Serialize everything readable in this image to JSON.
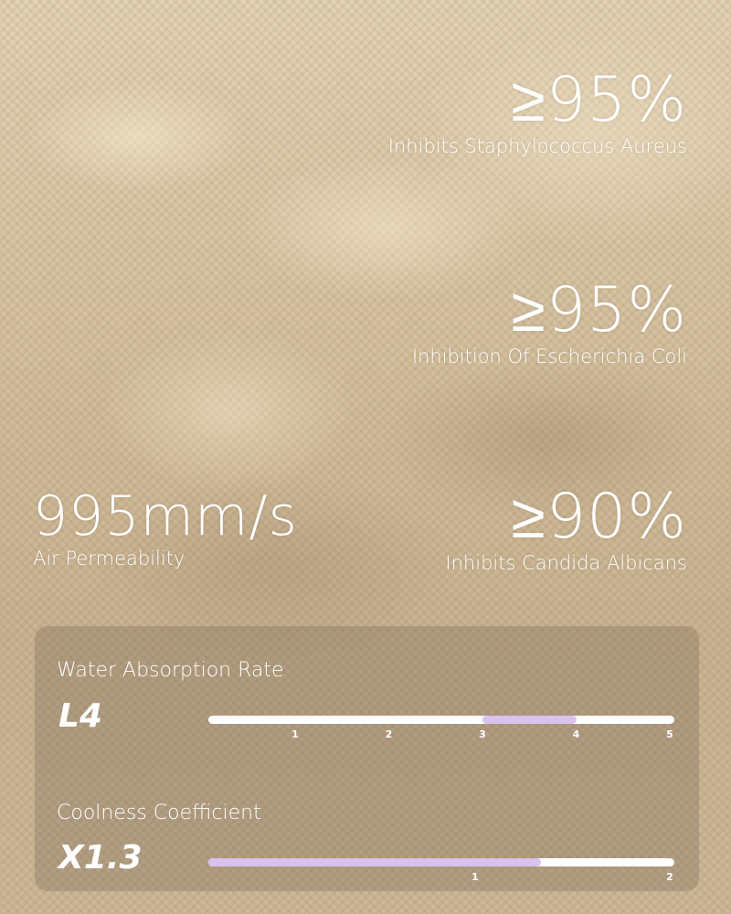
{
  "stats": [
    {
      "value": "≥95%",
      "label": "Inhibits Staphylococcus Aureus"
    },
    {
      "value": "≥95%",
      "label": "Inhibition Of Escherichia Coli"
    },
    {
      "value": "≥90%",
      "label": "Inhibits Candida Albicans"
    },
    {
      "value": "995mm/s",
      "label": "Air Permeability"
    }
  ],
  "panel": {
    "water": {
      "label": "Water Absorption Rate",
      "value": "L4",
      "scale": [
        "1",
        "2",
        "3",
        "4",
        "5"
      ],
      "range": [
        3,
        4
      ]
    },
    "cool": {
      "label": "Coolness Coefficient",
      "value": "X1.3",
      "scale": [
        "1",
        "2"
      ],
      "level": 1.3
    },
    "accent": "#d9c2ee"
  }
}
